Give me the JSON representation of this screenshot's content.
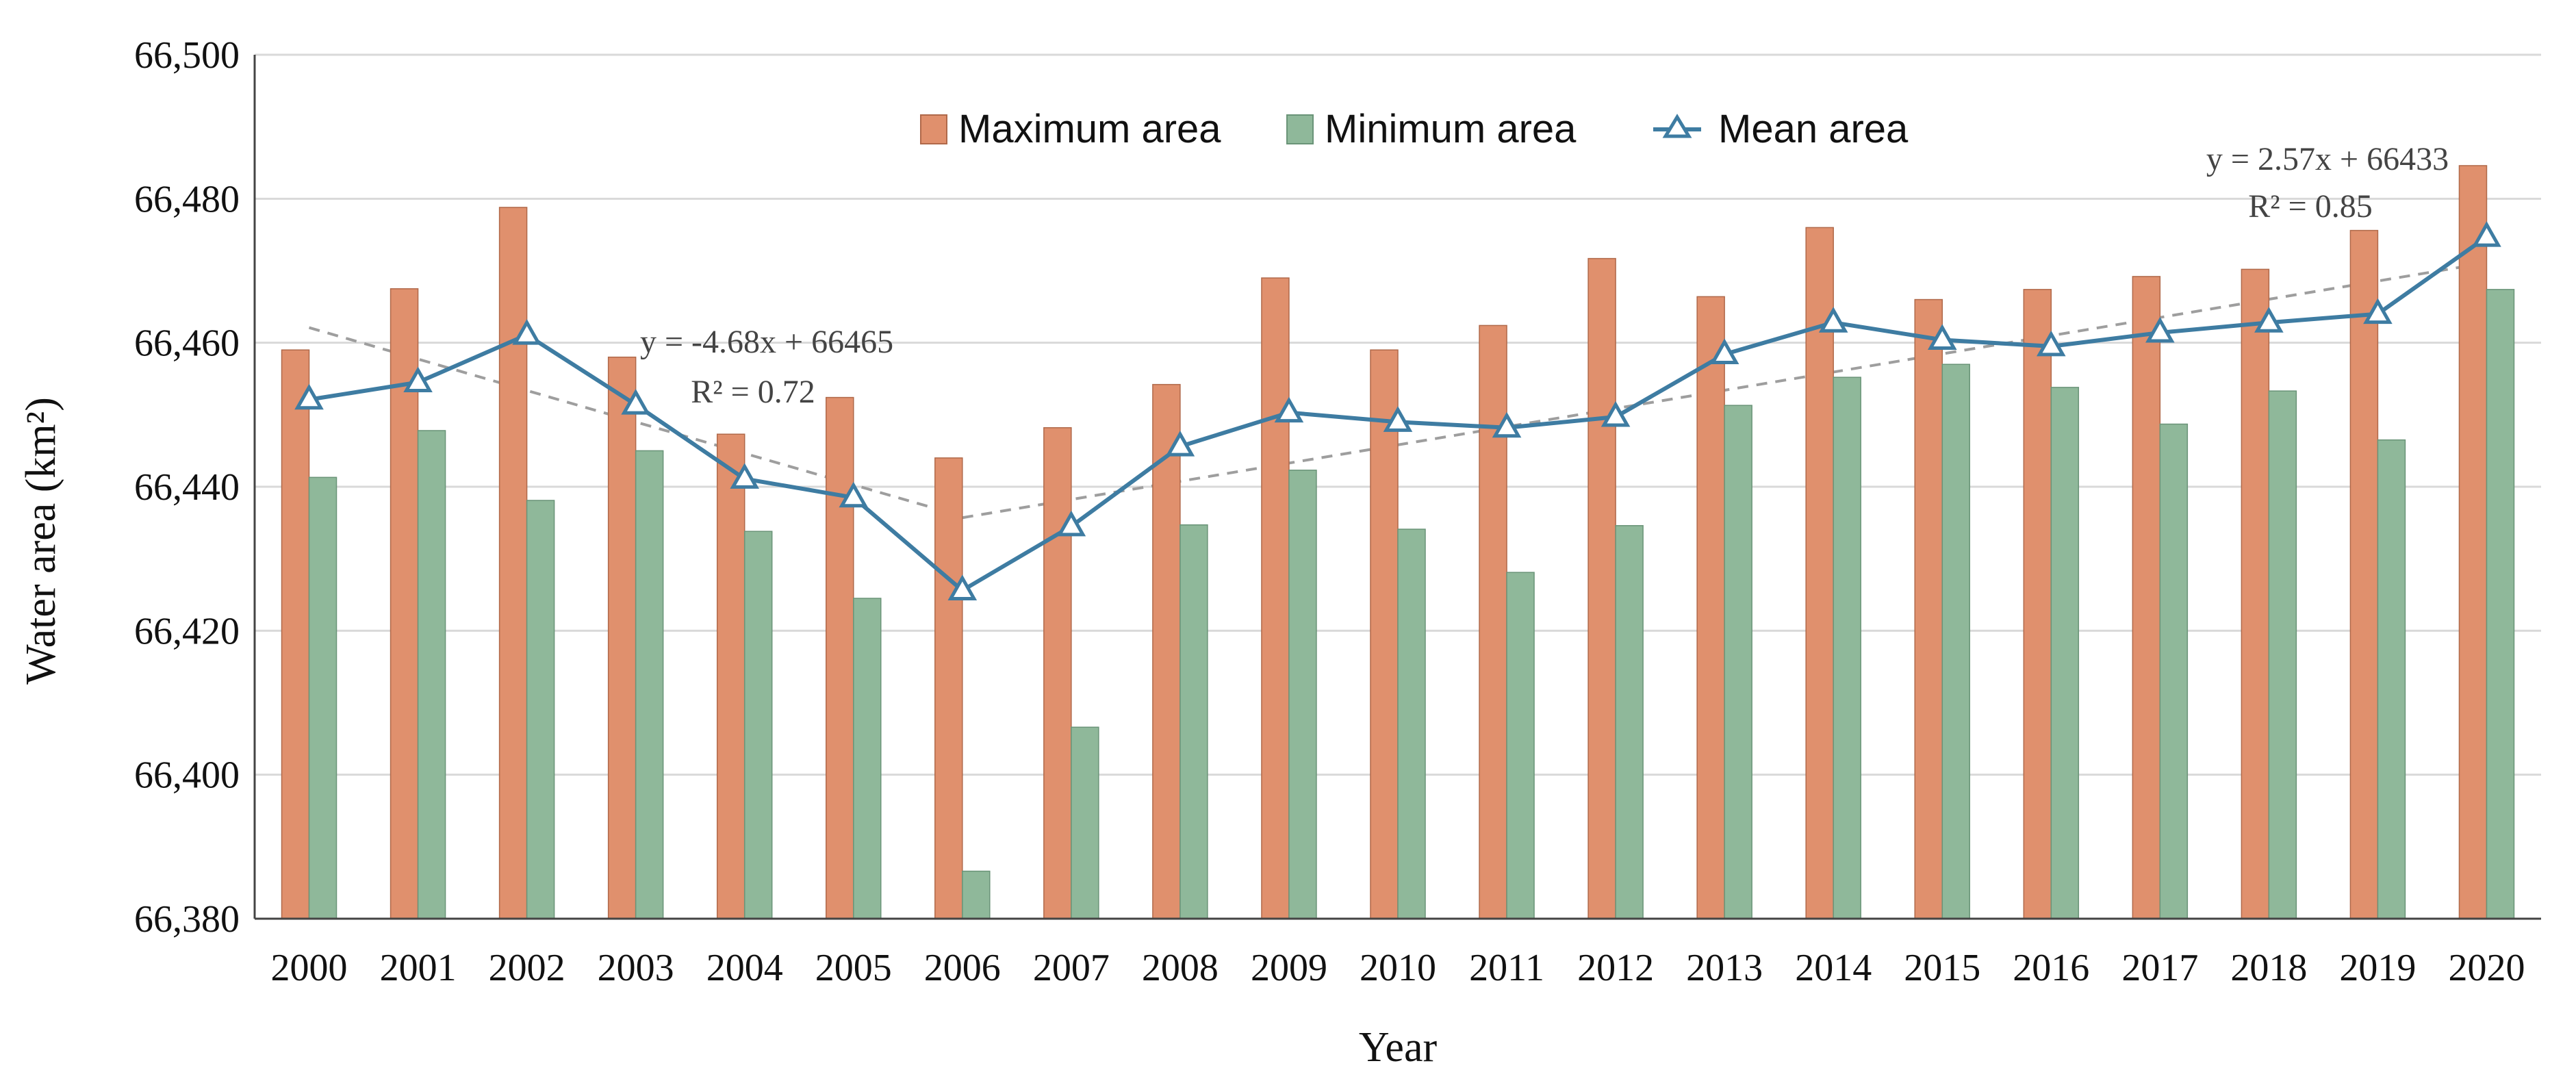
{
  "chart_data": {
    "type": "bar",
    "ylabel": "Water  area (km²)",
    "xlabel": "Year",
    "ylim": [
      66380,
      66500
    ],
    "yticks": [
      66380,
      66400,
      66420,
      66440,
      66460,
      66480,
      66500
    ],
    "ytick_labels": [
      "66,380",
      "66,400",
      "66,420",
      "66,440",
      "66,460",
      "66,480",
      "66,500"
    ],
    "grid": "horizontal",
    "legend_position": "top-center",
    "categories": [
      "2000",
      "2001",
      "2002",
      "2003",
      "2004",
      "2005",
      "2006",
      "2007",
      "2008",
      "2009",
      "2010",
      "2011",
      "2012",
      "2013",
      "2014",
      "2015",
      "2016",
      "2017",
      "2018",
      "2019",
      "2020"
    ],
    "series": [
      {
        "name": "Maximum area",
        "kind": "bar",
        "color": "#e0906d",
        "values": [
          66459,
          66467.5,
          66478.8,
          66458,
          66447.3,
          66452.4,
          66444,
          66448.2,
          66454.2,
          66469,
          66459,
          66462.4,
          66471.7,
          66466.4,
          66476,
          66466,
          66467.4,
          66469.2,
          66470.2,
          66475.6,
          66484.6
        ]
      },
      {
        "name": "Minimum area",
        "kind": "bar",
        "color": "#8fb89a",
        "values": [
          66441.3,
          66447.8,
          66438.1,
          66445,
          66433.8,
          66424.5,
          66386.6,
          66406.6,
          66434.7,
          66442.3,
          66434.1,
          66428.1,
          66434.6,
          66451.3,
          66455.2,
          66457,
          66453.8,
          66448.7,
          66453.3,
          66446.5,
          66467.4
        ]
      },
      {
        "name": "Mean area",
        "kind": "line",
        "marker": "triangle",
        "color": "#3e7ca2",
        "values": [
          66452.1,
          66454.5,
          66461.1,
          66451.4,
          66441.1,
          66438.5,
          66425.6,
          66434.5,
          66445.6,
          66450.3,
          66449,
          66448.2,
          66449.7,
          66458.4,
          66462.8,
          66460.4,
          66459.5,
          66461.4,
          66462.8,
          66464,
          66474.7
        ]
      }
    ],
    "trendlines": [
      {
        "from": "2000",
        "to": "2006",
        "start": 66462.1,
        "end": 66435.9,
        "equation": "y = -4.68x + 66465",
        "r2": "R² = 0.72"
      },
      {
        "from": "2006",
        "to": "2020",
        "start": 66435.7,
        "end": 66471.1,
        "equation": "y = 2.57x + 66433",
        "r2": "R² = 0.85"
      }
    ]
  }
}
